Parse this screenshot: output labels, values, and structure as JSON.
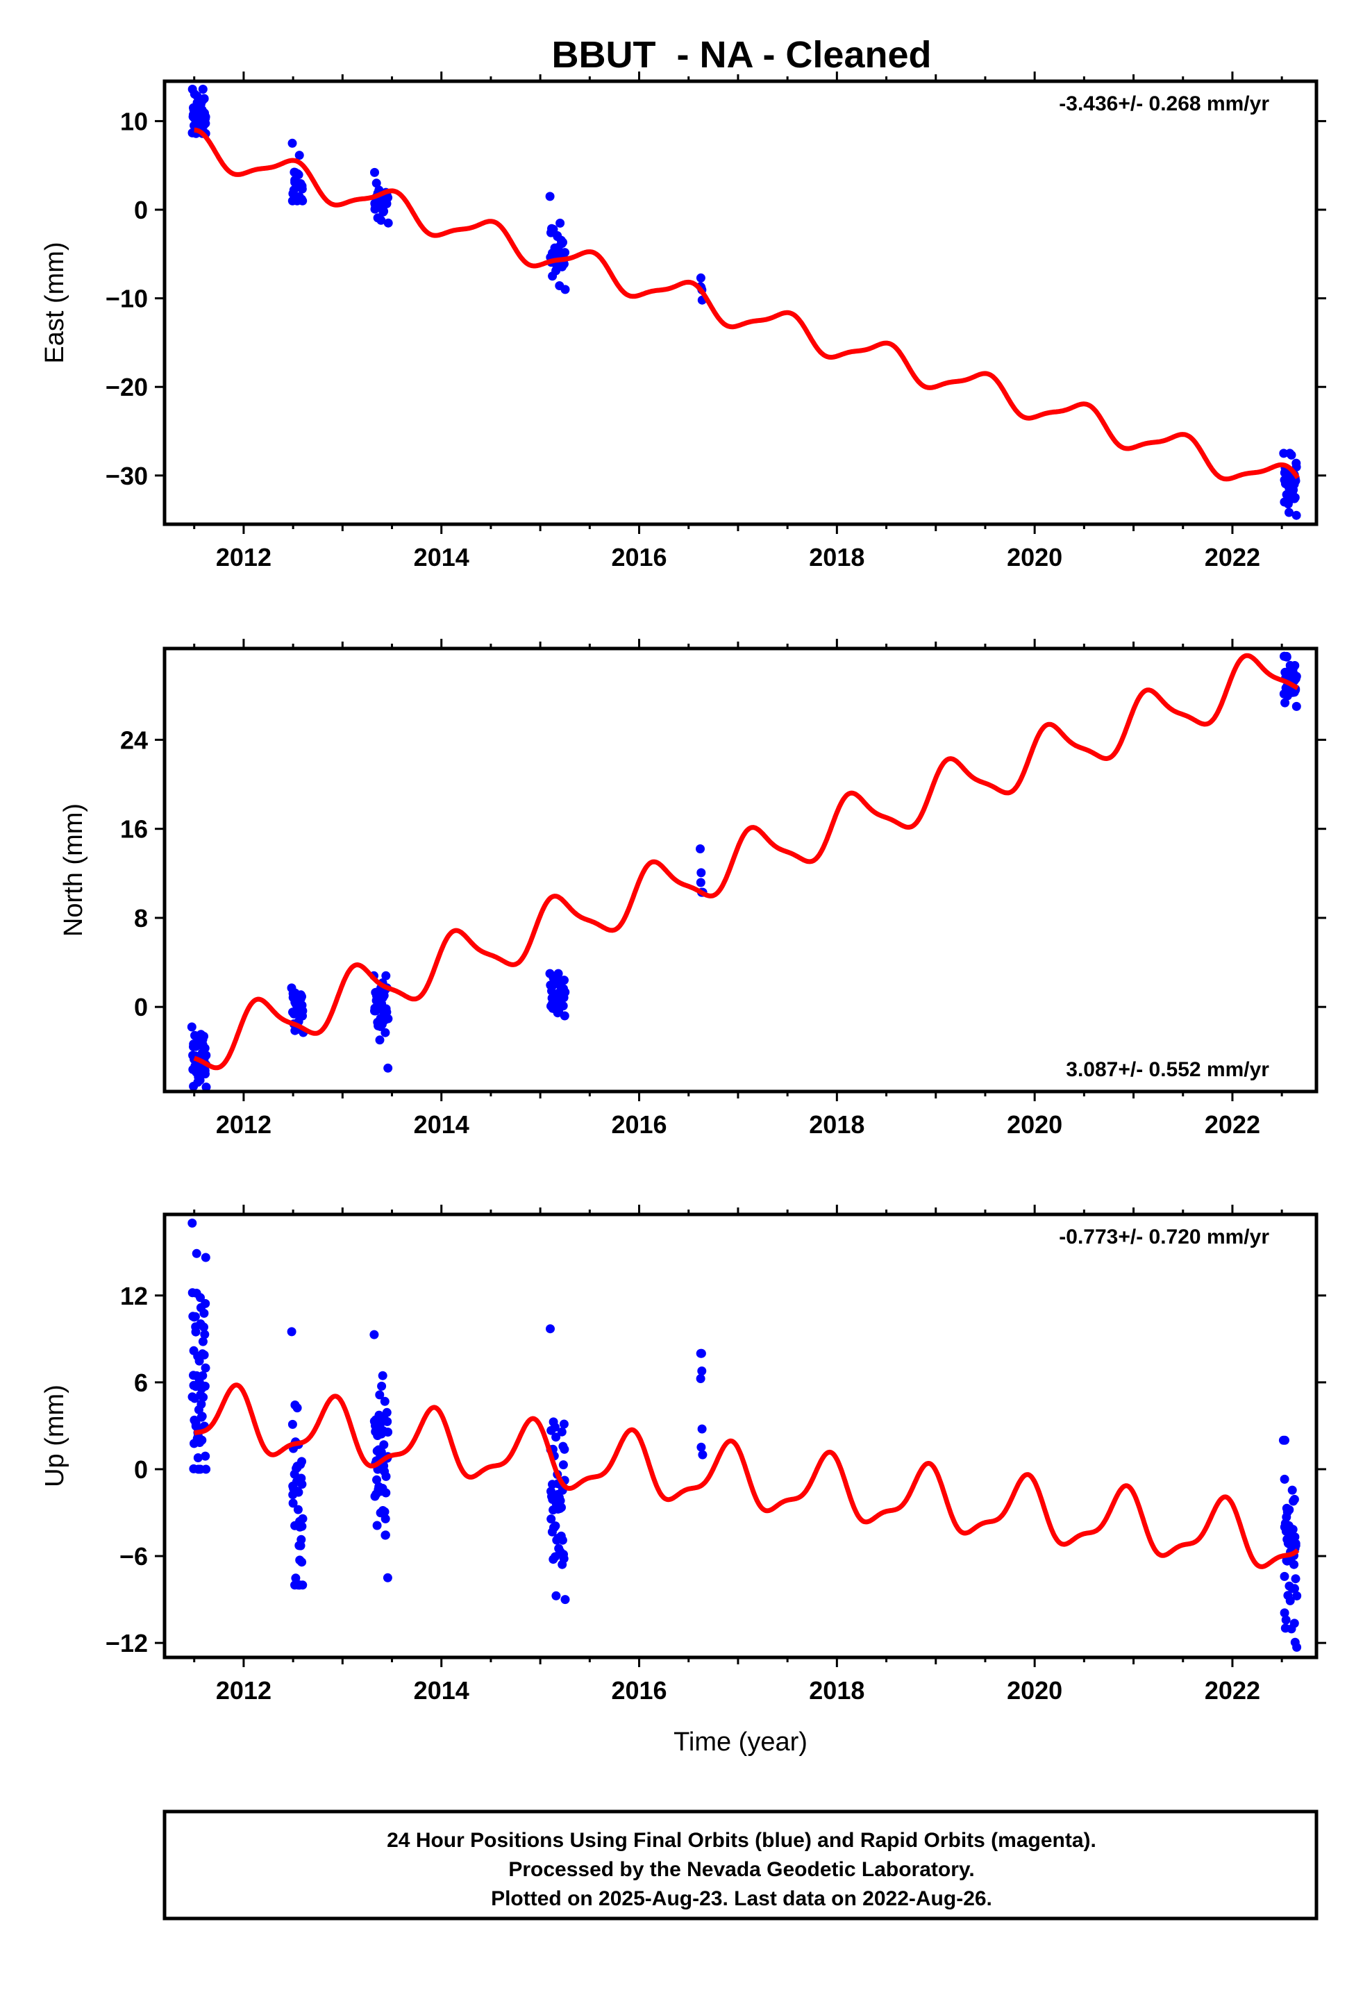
{
  "title": "BBUT  - NA - Cleaned",
  "footer": {
    "line1": "24 Hour Positions Using Final Orbits (blue) and Rapid Orbits (magenta).",
    "line2": "Processed by the Nevada Geodetic Laboratory.",
    "line3": "Plotted on 2025-Aug-23. Last data on 2022-Aug-26."
  },
  "colors": {
    "data": "#0000ff",
    "model": "#ff0000",
    "axis": "#000000"
  },
  "chart_data": [
    {
      "type": "scatter",
      "ylabel": "East (mm)",
      "xlabel": "",
      "xlim": [
        2011.2,
        2022.85
      ],
      "ylim": [
        -35.5,
        14.5
      ],
      "xticks": [
        2012,
        2014,
        2016,
        2018,
        2020,
        2022
      ],
      "yticks": [
        10,
        0,
        -10,
        -20,
        -30
      ],
      "rate_text": "-3.436+/- 0.268 mm/yr",
      "rate_position": "top-right",
      "model": {
        "t0": 2011.5,
        "y0": 9.0,
        "rate": -3.436,
        "annual_sin": -0.3,
        "annual_cos": 1.6,
        "semi_sin": 0.4,
        "semi_cos": 0.2
      },
      "clusters": [
        {
          "t_start": 2011.48,
          "t_end": 2011.62,
          "n": 45,
          "center": 10.4,
          "spread": 1.2,
          "min": 8.6,
          "max": 13.6
        },
        {
          "t_start": 2012.49,
          "t_end": 2012.6,
          "n": 25,
          "center": 3.4,
          "spread": 1.4,
          "min": 1.0,
          "max": 7.5
        },
        {
          "t_start": 2013.32,
          "t_end": 2013.46,
          "n": 35,
          "center": 1.0,
          "spread": 1.0,
          "min": -1.5,
          "max": 4.2
        },
        {
          "t_start": 2015.1,
          "t_end": 2015.25,
          "n": 40,
          "center": -5.0,
          "spread": 1.5,
          "min": -9.0,
          "max": 1.5
        },
        {
          "t_start": 2016.62,
          "t_end": 2016.64,
          "n": 5,
          "center": -9.0,
          "spread": 0.8,
          "min": -10.2,
          "max": -7.7
        },
        {
          "t_start": 2022.52,
          "t_end": 2022.65,
          "n": 40,
          "center": -30.5,
          "spread": 1.6,
          "min": -34.5,
          "max": -27.5
        }
      ]
    },
    {
      "type": "scatter",
      "ylabel": "North (mm)",
      "xlabel": "",
      "xlim": [
        2011.2,
        2022.85
      ],
      "ylim": [
        -7.6,
        32.2
      ],
      "xticks": [
        2012,
        2014,
        2016,
        2018,
        2020,
        2022
      ],
      "yticks": [
        24,
        16,
        8,
        0
      ],
      "rate_text": "3.087+/- 0.552 mm/yr",
      "rate_position": "bottom-right",
      "model": {
        "t0": 2011.5,
        "y0": -4.6,
        "rate": 3.087,
        "annual_sin": -2.0,
        "annual_cos": -1.0,
        "semi_sin": 0.5,
        "semi_cos": 0.3
      },
      "clusters": [
        {
          "t_start": 2011.48,
          "t_end": 2011.62,
          "n": 45,
          "center": -4.6,
          "spread": 1.2,
          "min": -7.2,
          "max": -1.8
        },
        {
          "t_start": 2012.49,
          "t_end": 2012.6,
          "n": 35,
          "center": -0.3,
          "spread": 1.0,
          "min": -2.3,
          "max": 1.7
        },
        {
          "t_start": 2013.32,
          "t_end": 2013.46,
          "n": 35,
          "center": -0.3,
          "spread": 1.5,
          "min": -5.5,
          "max": 2.8
        },
        {
          "t_start": 2015.1,
          "t_end": 2015.25,
          "n": 40,
          "center": 1.0,
          "spread": 1.0,
          "min": -0.8,
          "max": 3.0
        },
        {
          "t_start": 2016.62,
          "t_end": 2016.64,
          "n": 5,
          "center": 11.5,
          "spread": 1.0,
          "min": 10.3,
          "max": 14.2
        },
        {
          "t_start": 2022.52,
          "t_end": 2022.65,
          "n": 40,
          "center": 29.3,
          "spread": 1.2,
          "min": 27.0,
          "max": 31.5
        }
      ]
    },
    {
      "type": "scatter",
      "ylabel": "Up (mm)",
      "xlabel": "Time (year)",
      "xlim": [
        2011.2,
        2022.85
      ],
      "ylim": [
        -13.0,
        17.6
      ],
      "xticks": [
        2012,
        2014,
        2016,
        2018,
        2020,
        2022
      ],
      "yticks": [
        12,
        6,
        0,
        -6,
        -12
      ],
      "rate_text": "-0.773+/- 0.720 mm/yr",
      "rate_position": "top-right",
      "model": {
        "t0": 2011.5,
        "y0": 2.5,
        "rate": -0.773,
        "annual_sin": 1.2,
        "annual_cos": -1.6,
        "semi_sin": -0.4,
        "semi_cos": 0.6
      },
      "clusters": [
        {
          "t_start": 2011.48,
          "t_end": 2011.62,
          "n": 60,
          "center": 6.0,
          "spread": 3.8,
          "min": 0.0,
          "max": 17.0
        },
        {
          "t_start": 2012.49,
          "t_end": 2012.6,
          "n": 40,
          "center": -3.0,
          "spread": 3.5,
          "min": -8.0,
          "max": 9.5
        },
        {
          "t_start": 2013.32,
          "t_end": 2013.46,
          "n": 50,
          "center": 1.0,
          "spread": 2.5,
          "min": -7.5,
          "max": 9.3
        },
        {
          "t_start": 2015.1,
          "t_end": 2015.25,
          "n": 55,
          "center": -2.0,
          "spread": 3.0,
          "min": -9.0,
          "max": 9.7
        },
        {
          "t_start": 2016.62,
          "t_end": 2016.64,
          "n": 7,
          "center": 4.5,
          "spread": 2.2,
          "min": 1.0,
          "max": 8.0
        },
        {
          "t_start": 2022.52,
          "t_end": 2022.65,
          "n": 50,
          "center": -5.0,
          "spread": 3.5,
          "min": -12.3,
          "max": 2.0
        }
      ]
    }
  ]
}
